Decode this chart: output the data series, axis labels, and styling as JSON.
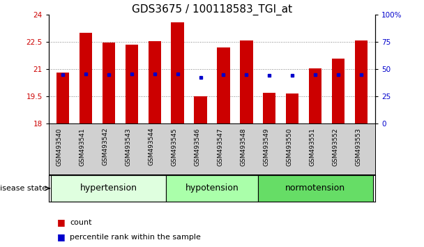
{
  "title": "GDS3675 / 100118583_TGI_at",
  "samples": [
    "GSM493540",
    "GSM493541",
    "GSM493542",
    "GSM493543",
    "GSM493544",
    "GSM493545",
    "GSM493546",
    "GSM493547",
    "GSM493548",
    "GSM493549",
    "GSM493550",
    "GSM493551",
    "GSM493552",
    "GSM493553"
  ],
  "red_values": [
    20.8,
    23.0,
    22.45,
    22.35,
    22.55,
    23.6,
    19.5,
    22.2,
    22.6,
    19.7,
    19.65,
    21.05,
    21.6,
    22.6
  ],
  "blue_values": [
    20.7,
    20.75,
    20.7,
    20.75,
    20.75,
    20.75,
    20.55,
    20.7,
    20.7,
    20.65,
    20.65,
    20.7,
    20.7,
    20.7
  ],
  "groups": [
    {
      "label": "hypertension",
      "indices": [
        0,
        1,
        2,
        3,
        4
      ],
      "color": "#dfffdf"
    },
    {
      "label": "hypotension",
      "indices": [
        5,
        6,
        7,
        8
      ],
      "color": "#aaffaa"
    },
    {
      "label": "normotension",
      "indices": [
        9,
        10,
        11,
        12,
        13
      ],
      "color": "#66dd66"
    }
  ],
  "ymin": 18,
  "ymax": 24,
  "yticks_left": [
    18,
    19.5,
    21,
    22.5,
    24
  ],
  "yticks_left_labels": [
    "18",
    "19.5",
    "21",
    "22.5",
    "24"
  ],
  "yticks_right": [
    0,
    25,
    50,
    75,
    100
  ],
  "yticks_right_labels": [
    "0",
    "25",
    "50",
    "75",
    "100%"
  ],
  "bar_color": "#cc0000",
  "dot_color": "#0000cc",
  "bar_width": 0.55,
  "legend_count_label": "count",
  "legend_pct_label": "percentile rank within the sample",
  "disease_state_label": "disease state",
  "left_axis_color": "#cc0000",
  "right_axis_color": "#0000cc",
  "title_fontsize": 11,
  "tick_fontsize": 7.5,
  "sample_fontsize": 6.5,
  "group_label_fontsize": 9,
  "legend_fontsize": 8
}
